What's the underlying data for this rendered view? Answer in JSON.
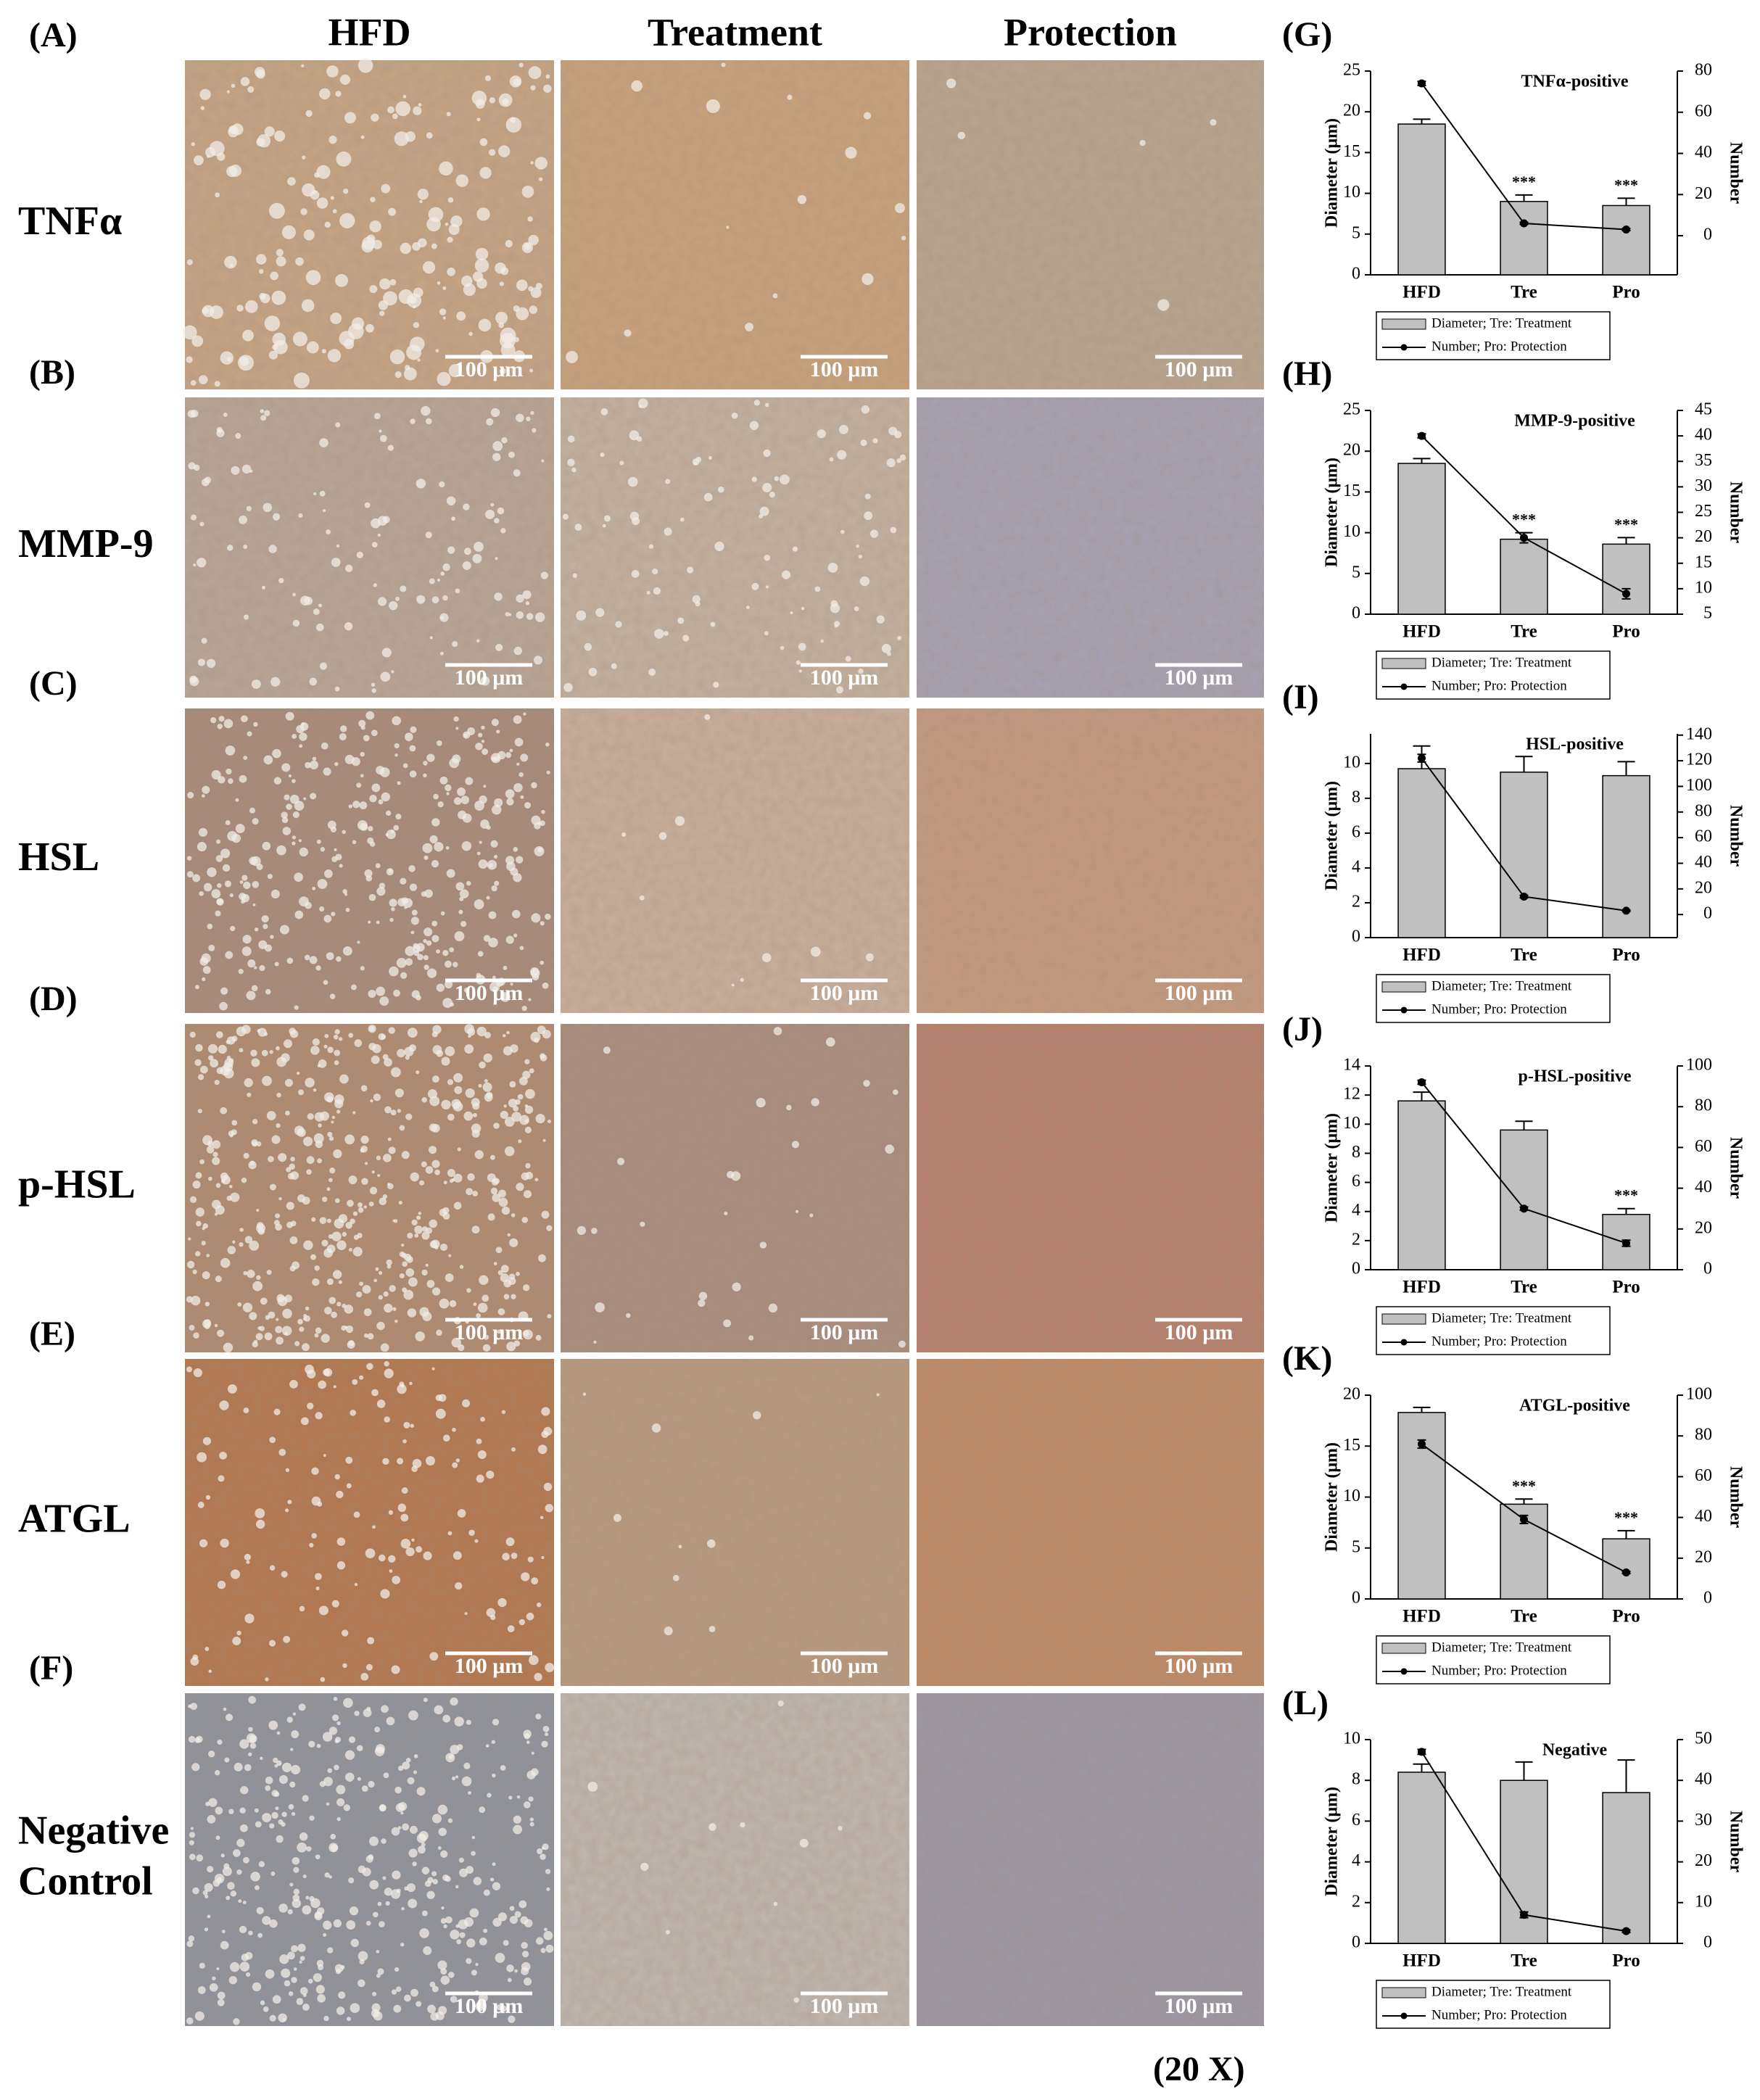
{
  "figure": {
    "column_headers": [
      "HFD",
      "Treatment",
      "Protection"
    ],
    "rows": [
      {
        "panel": "(A)",
        "label_lines": [
          "TNFα"
        ]
      },
      {
        "panel": "(B)",
        "label_lines": [
          "MMP-9"
        ]
      },
      {
        "panel": "(C)",
        "label_lines": [
          "HSL"
        ]
      },
      {
        "panel": "(D)",
        "label_lines": [
          "p-HSL"
        ]
      },
      {
        "panel": "(E)",
        "label_lines": [
          "ATGL"
        ]
      },
      {
        "panel": "(F)",
        "label_lines": [
          "Negative",
          "Control"
        ]
      }
    ],
    "scale_bar": "100 μm",
    "magnification": "(20 X)"
  },
  "chart_data": [
    {
      "type": "bar-line",
      "panel": "(G)",
      "title": "TNFα-positive",
      "ylabel": "Diameter (μm)",
      "y2label": "Number",
      "categories": [
        "HFD",
        "Tre",
        "Pro"
      ],
      "series": [
        {
          "name": "Diameter; Tre: Treatment",
          "color": "#c0c0c0",
          "values": [
            18.5,
            9.0,
            8.5
          ],
          "errors": [
            0.6,
            0.8,
            0.9
          ]
        },
        {
          "name": "Number; Pro: Protection",
          "color": "#000000",
          "axis": "y2",
          "values": [
            74,
            6,
            3
          ],
          "errors": [
            1,
            0.5,
            0.5
          ]
        }
      ],
      "star_labels": [
        null,
        "***",
        "***"
      ],
      "ylim": [
        0,
        25
      ],
      "yticks": [
        0,
        5,
        10,
        15,
        20,
        25
      ],
      "y2lim": [
        -19,
        80
      ],
      "y2ticks": [
        0,
        20,
        40,
        60,
        80
      ]
    },
    {
      "type": "bar-line",
      "panel": "(H)",
      "title": "MMP-9-positive",
      "ylabel": "Diameter (μm)",
      "y2label": "Number",
      "categories": [
        "HFD",
        "Tre",
        "Pro"
      ],
      "series": [
        {
          "name": "Diameter; Tre: Treatment",
          "color": "#c0c0c0",
          "values": [
            18.5,
            9.2,
            8.6
          ],
          "errors": [
            0.6,
            0.8,
            0.8
          ]
        },
        {
          "name": "Number; Pro: Protection",
          "color": "#000000",
          "axis": "y2",
          "values": [
            40,
            20,
            9
          ],
          "errors": [
            0.4,
            1,
            1
          ]
        }
      ],
      "star_labels": [
        null,
        "***",
        "***"
      ],
      "ylim": [
        0,
        25
      ],
      "yticks": [
        0,
        5,
        10,
        15,
        20,
        25
      ],
      "y2lim": [
        5,
        45
      ],
      "y2ticks": [
        5,
        10,
        15,
        20,
        25,
        30,
        35,
        40,
        45
      ]
    },
    {
      "type": "bar-line",
      "panel": "(I)",
      "title": "HSL-positive",
      "ylabel": "Diameter (μm)",
      "y2label": "Number",
      "categories": [
        "HFD",
        "Tre",
        "Pro"
      ],
      "series": [
        {
          "name": "Diameter; Tre: Treatment",
          "color": "#c0c0c0",
          "values": [
            9.7,
            9.5,
            9.3
          ],
          "errors": [
            1.3,
            0.9,
            0.8
          ]
        },
        {
          "name": "Number; Pro: Protection",
          "color": "#000000",
          "axis": "y2",
          "values": [
            122,
            14,
            3
          ],
          "errors": [
            3,
            1,
            0.5
          ]
        }
      ],
      "star_labels": [
        null,
        null,
        null
      ],
      "ylim": [
        0,
        11.7
      ],
      "yticks": [
        0,
        2,
        4,
        6,
        8,
        10
      ],
      "y2lim": [
        -18,
        141
      ],
      "y2ticks": [
        0,
        20,
        40,
        60,
        80,
        100,
        120,
        140
      ]
    },
    {
      "type": "bar-line",
      "panel": "(J)",
      "title": "p-HSL-positive",
      "ylabel": "Diameter (μm)",
      "y2label": "Number",
      "categories": [
        "HFD",
        "Tre",
        "Pro"
      ],
      "series": [
        {
          "name": "Diameter; Tre: Treatment",
          "color": "#c0c0c0",
          "values": [
            11.6,
            9.6,
            3.8
          ],
          "errors": [
            0.6,
            0.6,
            0.4
          ]
        },
        {
          "name": "Number; Pro: Protection",
          "color": "#000000",
          "axis": "y2",
          "values": [
            92,
            30,
            13
          ],
          "errors": [
            1,
            0.8,
            1.5
          ]
        }
      ],
      "star_labels": [
        null,
        null,
        "***"
      ],
      "ylim": [
        0,
        14
      ],
      "yticks": [
        0,
        2,
        4,
        6,
        8,
        10,
        12,
        14
      ],
      "y2lim": [
        0,
        100
      ],
      "y2ticks": [
        0,
        20,
        40,
        60,
        80,
        100
      ]
    },
    {
      "type": "bar-line",
      "panel": "(K)",
      "title": "ATGL-positive",
      "ylabel": "Diameter (μm)",
      "y2label": "Number",
      "categories": [
        "HFD",
        "Tre",
        "Pro"
      ],
      "series": [
        {
          "name": "Diameter; Tre: Treatment",
          "color": "#c0c0c0",
          "values": [
            18.3,
            9.3,
            5.9
          ],
          "errors": [
            0.5,
            0.5,
            0.8
          ]
        },
        {
          "name": "Number; Pro: Protection",
          "color": "#000000",
          "axis": "y2",
          "values": [
            76,
            39,
            13
          ],
          "errors": [
            2,
            2,
            0.5
          ]
        }
      ],
      "star_labels": [
        null,
        "***",
        "***"
      ],
      "ylim": [
        0,
        20
      ],
      "yticks": [
        0,
        5,
        10,
        15,
        20
      ],
      "y2lim": [
        0,
        100
      ],
      "y2ticks": [
        0,
        20,
        40,
        60,
        80,
        100
      ]
    },
    {
      "type": "bar-line",
      "panel": "(L)",
      "title": "Negative",
      "ylabel": "Diameter (μm)",
      "y2label": "Number",
      "categories": [
        "HFD",
        "Tre",
        "Pro"
      ],
      "series": [
        {
          "name": "Diameter; Tre: Treatment",
          "color": "#c0c0c0",
          "values": [
            8.4,
            8.0,
            7.4
          ],
          "errors": [
            0.4,
            0.9,
            1.6
          ]
        },
        {
          "name": "Number; Pro: Protection",
          "color": "#000000",
          "axis": "y2",
          "values": [
            47,
            7,
            3
          ],
          "errors": [
            0.6,
            0.7,
            0.3
          ]
        }
      ],
      "star_labels": [
        null,
        null,
        null
      ],
      "ylim": [
        0,
        10
      ],
      "yticks": [
        0,
        2,
        4,
        6,
        8,
        10
      ],
      "y2lim": [
        0,
        50
      ],
      "y2ticks": [
        0,
        10,
        20,
        30,
        40,
        50
      ]
    }
  ]
}
